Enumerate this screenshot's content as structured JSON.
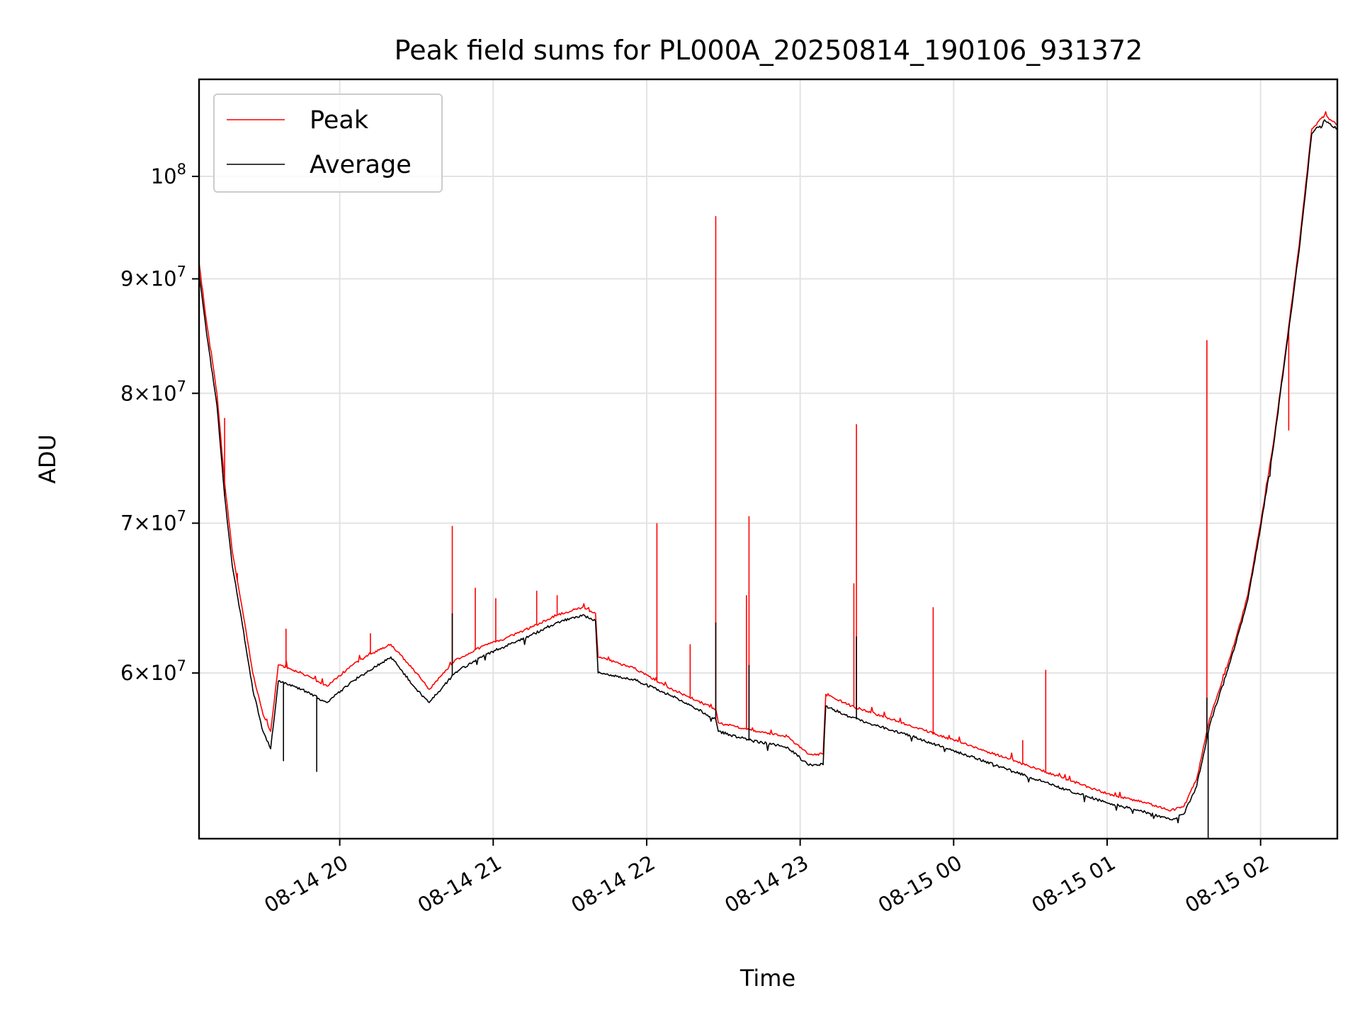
{
  "chart_data": {
    "type": "line",
    "title": "Peak field sums for PL000A_20250814_190106_931372",
    "xlabel": "Time",
    "ylabel": "ADU",
    "yscale": "log",
    "ylim": [
      50600000,
      110500000
    ],
    "xlim": [
      "2025-08-14T19:05:00",
      "2025-08-15T02:30:00"
    ],
    "grid": true,
    "legend_position": "top-left",
    "x_ticks": [
      {
        "value": "2025-08-14T20:00:00",
        "label": "08-14 20"
      },
      {
        "value": "2025-08-14T21:00:00",
        "label": "08-14 21"
      },
      {
        "value": "2025-08-14T22:00:00",
        "label": "08-14 22"
      },
      {
        "value": "2025-08-14T23:00:00",
        "label": "08-14 23"
      },
      {
        "value": "2025-08-15T00:00:00",
        "label": "08-15 00"
      },
      {
        "value": "2025-08-15T01:00:00",
        "label": "08-15 01"
      },
      {
        "value": "2025-08-15T02:00:00",
        "label": "08-15 02"
      }
    ],
    "y_ticks": [
      {
        "value": 60000000,
        "mant": "6",
        "exp": "7"
      },
      {
        "value": 70000000,
        "mant": "7",
        "exp": "7"
      },
      {
        "value": 80000000,
        "mant": "8",
        "exp": "7"
      },
      {
        "value": 90000000,
        "mant": "9",
        "exp": "7"
      },
      {
        "value": 100000000,
        "mant": "",
        "exp": "8"
      }
    ],
    "series": [
      {
        "name": "Peak",
        "color": "#ff0000",
        "x": [
          "2025-08-14T19:05:00",
          "2025-08-14T19:08:00",
          "2025-08-14T19:12:00",
          "2025-08-14T19:15:00",
          "2025-08-14T19:18:00",
          "2025-08-14T19:22:00",
          "2025-08-14T19:26:00",
          "2025-08-14T19:30:00",
          "2025-08-14T19:33:00",
          "2025-08-14T19:36:00",
          "2025-08-14T19:45:00",
          "2025-08-14T19:55:00",
          "2025-08-14T20:05:00",
          "2025-08-14T20:10:00",
          "2025-08-14T20:20:00",
          "2025-08-14T20:30:00",
          "2025-08-14T20:35:00",
          "2025-08-14T20:45:00",
          "2025-08-14T20:55:00",
          "2025-08-14T21:05:00",
          "2025-08-14T21:15:00",
          "2025-08-14T21:25:00",
          "2025-08-14T21:35:00",
          "2025-08-14T21:40:00",
          "2025-08-14T21:41:00",
          "2025-08-14T21:55:00",
          "2025-08-14T22:10:00",
          "2025-08-14T22:20:00",
          "2025-08-14T22:27:00",
          "2025-08-14T22:28:00",
          "2025-08-14T22:40:00",
          "2025-08-14T22:55:00",
          "2025-08-14T23:03:00",
          "2025-08-14T23:09:00",
          "2025-08-14T23:10:00",
          "2025-08-14T23:20:00",
          "2025-08-14T23:40:00",
          "2025-08-15T00:00:00",
          "2025-08-15T00:20:00",
          "2025-08-15T00:40:00",
          "2025-08-15T01:00:00",
          "2025-08-15T01:15:00",
          "2025-08-15T01:25:00",
          "2025-08-15T01:30:00",
          "2025-08-15T01:35:00",
          "2025-08-15T01:40:00",
          "2025-08-15T01:45:00",
          "2025-08-15T01:50:00",
          "2025-08-15T01:55:00",
          "2025-08-15T02:00:00",
          "2025-08-15T02:05:00",
          "2025-08-15T02:10:00",
          "2025-08-15T02:15:00",
          "2025-08-15T02:18:00",
          "2025-08-15T02:20:00",
          "2025-08-15T02:25:00",
          "2025-08-15T02:30:00"
        ],
        "y": [
          91500000,
          86000000,
          80000000,
          73000000,
          68000000,
          64000000,
          60000000,
          57500000,
          56500000,
          60500000,
          60000000,
          59200000,
          60500000,
          61000000,
          61800000,
          60000000,
          59000000,
          60800000,
          61600000,
          62200000,
          62900000,
          63700000,
          64200000,
          63800000,
          61000000,
          60300000,
          59000000,
          58300000,
          57800000,
          57000000,
          56600000,
          56200000,
          55200000,
          55200000,
          58700000,
          58000000,
          57000000,
          56000000,
          55000000,
          54000000,
          53000000,
          52500000,
          52100000,
          52300000,
          53800000,
          57200000,
          59500000,
          62000000,
          65000000,
          70000000,
          76000000,
          84000000,
          93000000,
          100000000,
          105000000,
          106500000,
          105500000
        ],
        "spikes": [
          {
            "x": "2025-08-14T19:15:00",
            "y": 78000000
          },
          {
            "x": "2025-08-14T19:20:00",
            "y": 66500000
          },
          {
            "x": "2025-08-14T19:39:00",
            "y": 62800000
          },
          {
            "x": "2025-08-14T20:12:00",
            "y": 62500000
          },
          {
            "x": "2025-08-14T20:44:00",
            "y": 69800000
          },
          {
            "x": "2025-08-14T20:53:00",
            "y": 65500000
          },
          {
            "x": "2025-08-14T21:01:00",
            "y": 64800000
          },
          {
            "x": "2025-08-14T21:17:00",
            "y": 65300000
          },
          {
            "x": "2025-08-14T21:25:00",
            "y": 65000000
          },
          {
            "x": "2025-08-14T22:04:00",
            "y": 70000000
          },
          {
            "x": "2025-08-14T22:17:00",
            "y": 61800000
          },
          {
            "x": "2025-08-14T22:27:00",
            "y": 96000000
          },
          {
            "x": "2025-08-14T22:39:00",
            "y": 65000000
          },
          {
            "x": "2025-08-14T22:40:00",
            "y": 70500000
          },
          {
            "x": "2025-08-14T23:21:00",
            "y": 65800000
          },
          {
            "x": "2025-08-14T23:22:00",
            "y": 77500000
          },
          {
            "x": "2025-08-14T23:52:00",
            "y": 64200000
          },
          {
            "x": "2025-08-15T00:27:00",
            "y": 56000000
          },
          {
            "x": "2025-08-15T00:36:00",
            "y": 60200000
          },
          {
            "x": "2025-08-15T01:39:00",
            "y": 84500000
          },
          {
            "x": "2025-08-15T02:11:00",
            "y": 77000000
          }
        ]
      },
      {
        "name": "Average",
        "color": "#000000",
        "x": [
          "2025-08-14T19:05:00",
          "2025-08-14T19:08:00",
          "2025-08-14T19:12:00",
          "2025-08-14T19:15:00",
          "2025-08-14T19:18:00",
          "2025-08-14T19:22:00",
          "2025-08-14T19:26:00",
          "2025-08-14T19:30:00",
          "2025-08-14T19:33:00",
          "2025-08-14T19:36:00",
          "2025-08-14T19:45:00",
          "2025-08-14T19:55:00",
          "2025-08-14T20:05:00",
          "2025-08-14T20:10:00",
          "2025-08-14T20:20:00",
          "2025-08-14T20:30:00",
          "2025-08-14T20:35:00",
          "2025-08-14T20:45:00",
          "2025-08-14T20:55:00",
          "2025-08-14T21:05:00",
          "2025-08-14T21:15:00",
          "2025-08-14T21:25:00",
          "2025-08-14T21:35:00",
          "2025-08-14T21:40:00",
          "2025-08-14T21:41:00",
          "2025-08-14T21:55:00",
          "2025-08-14T22:10:00",
          "2025-08-14T22:20:00",
          "2025-08-14T22:27:00",
          "2025-08-14T22:28:00",
          "2025-08-14T22:40:00",
          "2025-08-14T22:55:00",
          "2025-08-14T23:03:00",
          "2025-08-14T23:09:00",
          "2025-08-14T23:10:00",
          "2025-08-14T23:20:00",
          "2025-08-14T23:40:00",
          "2025-08-15T00:00:00",
          "2025-08-15T00:20:00",
          "2025-08-15T00:40:00",
          "2025-08-15T01:00:00",
          "2025-08-15T01:15:00",
          "2025-08-15T01:25:00",
          "2025-08-15T01:30:00",
          "2025-08-15T01:35:00",
          "2025-08-15T01:40:00",
          "2025-08-15T01:45:00",
          "2025-08-15T01:50:00",
          "2025-08-15T01:55:00",
          "2025-08-15T02:00:00",
          "2025-08-15T02:05:00",
          "2025-08-15T02:10:00",
          "2025-08-15T02:15:00",
          "2025-08-15T02:18:00",
          "2025-08-15T02:20:00",
          "2025-08-15T02:25:00",
          "2025-08-15T02:30:00"
        ],
        "y": [
          90500000,
          85000000,
          79000000,
          72000000,
          67000000,
          63000000,
          59000000,
          56500000,
          55500000,
          59500000,
          59000000,
          58200000,
          59500000,
          60000000,
          61000000,
          59000000,
          58200000,
          60000000,
          61000000,
          61700000,
          62400000,
          63200000,
          63700000,
          63300000,
          60000000,
          59600000,
          58600000,
          57800000,
          57200000,
          56500000,
          56000000,
          55600000,
          54600000,
          54600000,
          58000000,
          57300000,
          56400000,
          55400000,
          54400000,
          53400000,
          52500000,
          52000000,
          51600000,
          51900000,
          53400000,
          56800000,
          59200000,
          61700000,
          64700000,
          69700000,
          75700000,
          83700000,
          92500000,
          99500000,
          104500000,
          106000000,
          105000000
        ],
        "spikes": [
          {
            "x": "2025-08-14T19:15:00",
            "y": 72500000
          },
          {
            "x": "2025-08-14T19:38:00",
            "y": 54800000
          },
          {
            "x": "2025-08-14T19:51:00",
            "y": 54200000
          },
          {
            "x": "2025-08-14T20:44:00",
            "y": 63800000
          },
          {
            "x": "2025-08-14T22:27:00",
            "y": 63200000
          },
          {
            "x": "2025-08-14T22:40:00",
            "y": 60500000
          },
          {
            "x": "2025-08-14T23:22:00",
            "y": 62300000
          },
          {
            "x": "2025-08-15T01:39:00",
            "y": 58500000
          },
          {
            "x": "2025-08-15T01:39:30",
            "y": 50600000
          }
        ]
      }
    ]
  }
}
